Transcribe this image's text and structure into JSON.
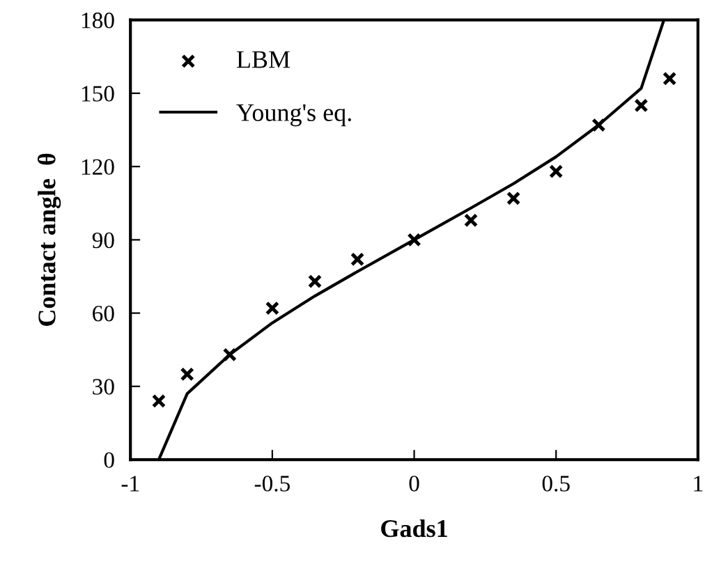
{
  "chart_data": {
    "type": "scatter",
    "xlabel": "Gads1",
    "ylabel": "Contact angle  θ",
    "xlim": [
      -1,
      1
    ],
    "ylim": [
      0,
      180
    ],
    "xticks": [
      -1,
      -0.5,
      0,
      0.5,
      1
    ],
    "yticks": [
      0,
      30,
      60,
      90,
      120,
      150,
      180
    ],
    "grid": false,
    "legend": "top left",
    "series": [
      {
        "name": "LBM",
        "marker": "cross",
        "color": "#000000",
        "x": [
          -0.9,
          -0.8,
          -0.65,
          -0.5,
          -0.35,
          -0.2,
          0,
          0.2,
          0.35,
          0.5,
          0.65,
          0.8,
          0.9
        ],
        "values": [
          24,
          35,
          43,
          62,
          73,
          82,
          90,
          98,
          107,
          118,
          137,
          145,
          156
        ]
      },
      {
        "name": "Young's eq.",
        "type": "line",
        "marker": "none",
        "line_style": "solid",
        "color": "#000000",
        "x": [
          -0.9,
          -0.8,
          -0.65,
          -0.5,
          -0.35,
          -0.2,
          0,
          0.2,
          0.35,
          0.5,
          0.65,
          0.8,
          0.88
        ],
        "values": [
          0,
          27,
          43,
          56,
          67,
          77,
          90,
          103,
          113,
          124,
          137,
          152,
          180
        ]
      }
    ]
  }
}
